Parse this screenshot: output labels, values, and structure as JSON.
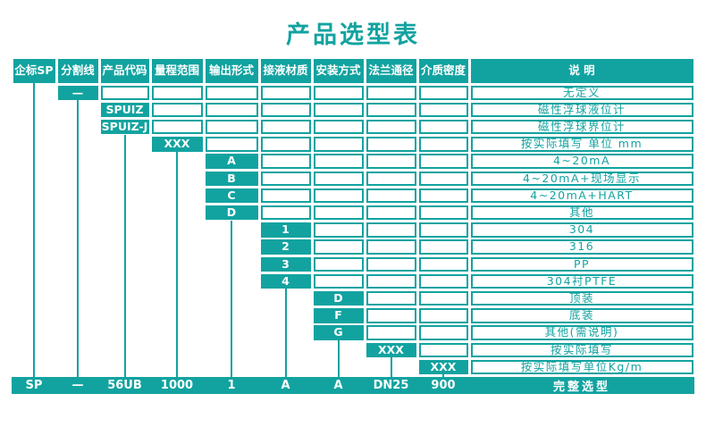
{
  "title": "产品选型表",
  "colors": {
    "accent_teal": "#12a3a0",
    "cell_text_white": "#ffffff"
  },
  "table": {
    "headers": [
      "企标SP",
      "分割线",
      "产品代码",
      "量程范围",
      "输出形式",
      "接液材质",
      "安装方式",
      "法兰通径",
      "介质密度",
      "说 明"
    ],
    "rows": [
      {
        "col": 2,
        "column": "分割线",
        "code": "—",
        "description": "无定义"
      },
      {
        "col": 3,
        "column": "产品代码",
        "code": "SPUIZ",
        "description": "磁性浮球液位计"
      },
      {
        "col": 3,
        "column": "产品代码",
        "code": "SPUIZ-J",
        "description": "磁性浮球界位计"
      },
      {
        "col": 4,
        "column": "量程范围",
        "code": "XXX",
        "description": "按实际填写 单位 mm"
      },
      {
        "col": 5,
        "column": "输出形式",
        "code": "A",
        "description": "4~20mA"
      },
      {
        "col": 5,
        "column": "输出形式",
        "code": "B",
        "description": "4~20mA+现场显示"
      },
      {
        "col": 5,
        "column": "输出形式",
        "code": "C",
        "description": "4~20mA+HART"
      },
      {
        "col": 5,
        "column": "输出形式",
        "code": "D",
        "description": "其他"
      },
      {
        "col": 6,
        "column": "接液材质",
        "code": "1",
        "description": "304"
      },
      {
        "col": 6,
        "column": "接液材质",
        "code": "2",
        "description": "316"
      },
      {
        "col": 6,
        "column": "接液材质",
        "code": "3",
        "description": "PP"
      },
      {
        "col": 6,
        "column": "接液材质",
        "code": "4",
        "description": "304衬PTFE"
      },
      {
        "col": 7,
        "column": "安装方式",
        "code": "D",
        "description": "顶装"
      },
      {
        "col": 7,
        "column": "安装方式",
        "code": "F",
        "description": "底装"
      },
      {
        "col": 7,
        "column": "安装方式",
        "code": "G",
        "description": "其他(需说明)"
      },
      {
        "col": 8,
        "column": "法兰通径",
        "code": "XXX",
        "description": "按实际填写"
      },
      {
        "col": 9,
        "column": "介质密度",
        "code": "XXX",
        "description": "按实际填写单位Kg/m"
      }
    ],
    "summary": {
      "values": [
        "SP",
        "—",
        "56UB",
        "1000",
        "1",
        "A",
        "A",
        "DN25",
        "900"
      ],
      "label": "完整选型"
    }
  }
}
